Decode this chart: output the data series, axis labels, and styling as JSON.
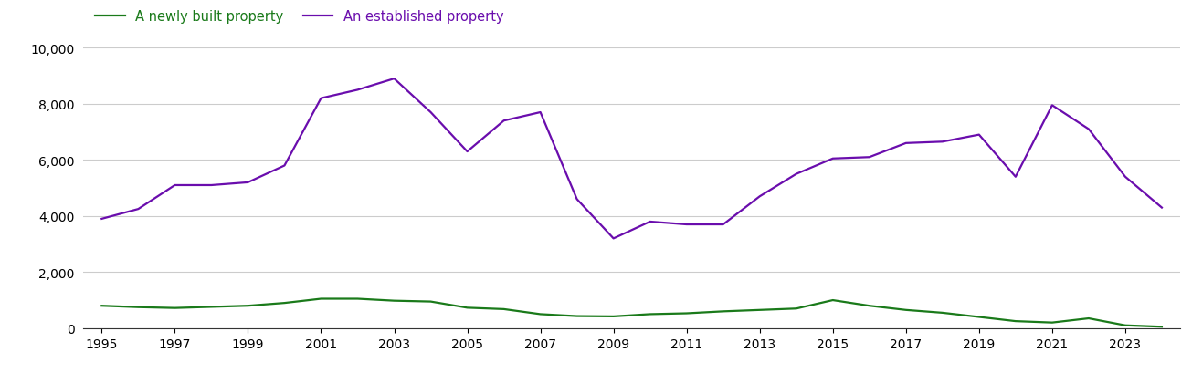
{
  "years": [
    1995,
    1996,
    1997,
    1998,
    1999,
    2000,
    2001,
    2002,
    2003,
    2004,
    2005,
    2006,
    2007,
    2008,
    2009,
    2010,
    2011,
    2012,
    2013,
    2014,
    2015,
    2016,
    2017,
    2018,
    2019,
    2020,
    2021,
    2022,
    2023,
    2024
  ],
  "new_build": [
    800,
    750,
    720,
    760,
    800,
    900,
    1050,
    1050,
    980,
    950,
    730,
    680,
    500,
    430,
    420,
    500,
    530,
    600,
    650,
    700,
    1000,
    800,
    650,
    550,
    400,
    250,
    200,
    350,
    100,
    50
  ],
  "established": [
    3900,
    4250,
    5100,
    5100,
    5200,
    5800,
    8200,
    8500,
    8900,
    7700,
    6300,
    7400,
    7700,
    4600,
    3200,
    3800,
    3700,
    3700,
    4700,
    5500,
    6050,
    6100,
    6600,
    6650,
    6900,
    5400,
    7950,
    7100,
    5400,
    4300
  ],
  "new_build_color": "#1a7a1a",
  "established_color": "#6a0dad",
  "new_build_label": "A newly built property",
  "established_label": "An established property",
  "ylim": [
    0,
    10000
  ],
  "yticks": [
    0,
    2000,
    4000,
    6000,
    8000,
    10000
  ],
  "background_color": "#ffffff",
  "grid_color": "#cccccc",
  "legend_fontsize": 10.5,
  "axis_fontsize": 10,
  "line_width": 1.6
}
